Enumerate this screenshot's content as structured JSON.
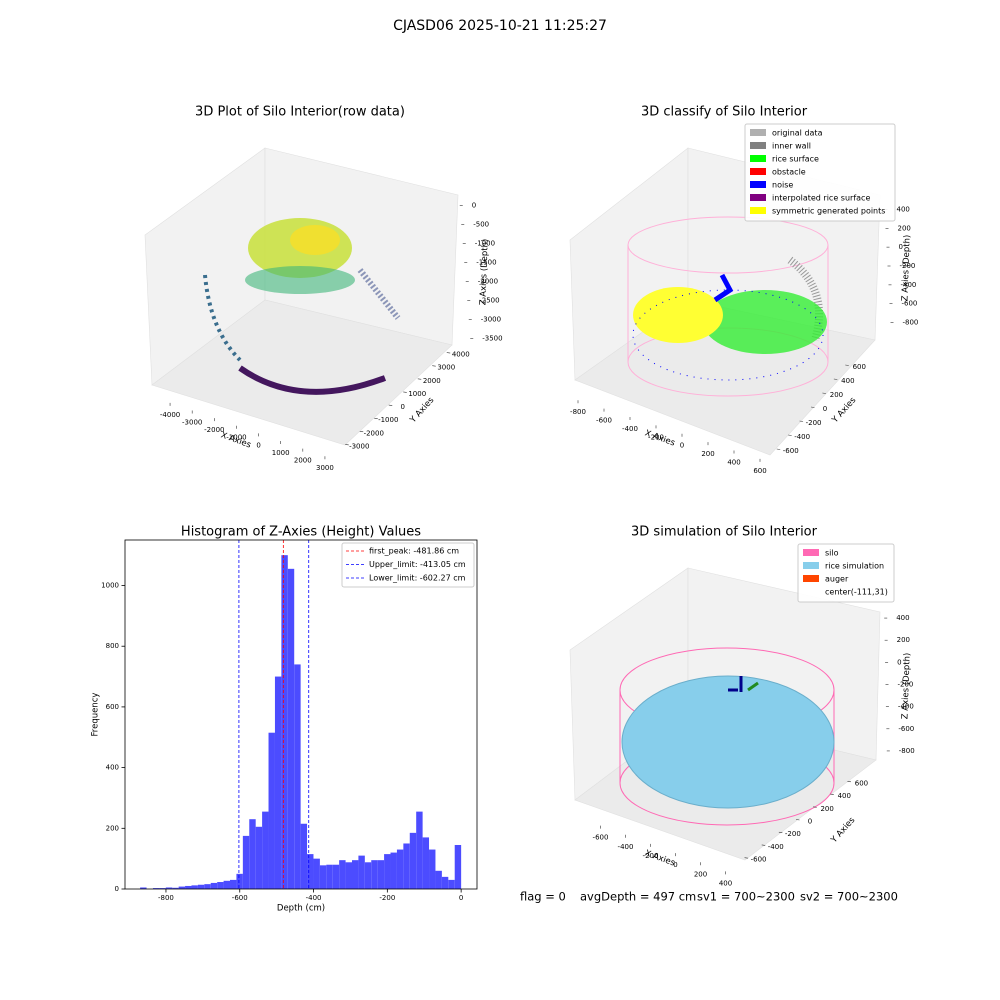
{
  "title": "CJASD06 2025-10-21 11:25:27",
  "chart_data": [
    {
      "type": "scatter3d",
      "title": "3D Plot of Silo Interior(row data)",
      "xlabel": "X Axies",
      "ylabel": "Y Axies",
      "zlabel": "Z Axies (Depth)",
      "xlim": [
        -4500,
        3500
      ],
      "xticks": [
        -4000,
        -3000,
        -2000,
        -1000,
        0,
        1000,
        2000,
        3000
      ],
      "ylim": [
        -3500,
        4500
      ],
      "yticks": [
        -3000,
        -2000,
        -1000,
        0,
        1000,
        2000,
        3000,
        4000
      ],
      "zlim": [
        -3750,
        250
      ],
      "zticks": [
        0,
        -500,
        -1000,
        -1500,
        -2000,
        -2500,
        -3000,
        -3500
      ]
    },
    {
      "type": "scatter3d",
      "title": "3D classify of Silo Interior",
      "xlabel": "X Axies",
      "ylabel": "Y Axies",
      "zlabel": "Z Axies (Depth)",
      "xlim": [
        -900,
        700
      ],
      "xticks": [
        -800,
        -600,
        -400,
        -200,
        0,
        200,
        400,
        600
      ],
      "ylim": [
        -700,
        700
      ],
      "yticks": [
        -600,
        -400,
        -200,
        0,
        200,
        400,
        600
      ],
      "zlim": [
        -900,
        500
      ],
      "zticks": [
        400,
        200,
        0,
        -200,
        -400,
        -600,
        -800
      ],
      "legend": [
        {
          "name": "original data",
          "color": "#b0b0b0"
        },
        {
          "name": "inner wall",
          "color": "#808080"
        },
        {
          "name": "rice surface",
          "color": "#00ff00"
        },
        {
          "name": "obstacle",
          "color": "#ff0000"
        },
        {
          "name": "noise",
          "color": "#0000ff"
        },
        {
          "name": "interpolated rice surface",
          "color": "#800080"
        },
        {
          "name": "symmetric generated points",
          "color": "#ffff00"
        }
      ]
    },
    {
      "type": "histogram",
      "title": "Histogram of Z-Axies (Height) Values",
      "xlabel": "Depth (cm)",
      "ylabel": "Frequency",
      "color": "#4c4cff",
      "bins": [
        -870,
        -852.6,
        -835.2,
        -817.8,
        -800.4,
        -783,
        -765.6,
        -748.2,
        -730.8,
        -713.4,
        -696,
        -678.6,
        -661.2,
        -643.8,
        -626.4,
        -609,
        -591.6,
        -574.2,
        -556.8,
        -539.4,
        -522,
        -504.6,
        -487.2,
        -469.8,
        -452.4,
        -435,
        -417.6,
        -400.2,
        -382.8,
        -365.4,
        -348,
        -330.6,
        -313.2,
        -295.8,
        -278.4,
        -261,
        -243.6,
        -226.2,
        -208.8,
        -191.4,
        -174,
        -156.6,
        -139.2,
        -121.8,
        -104.4,
        -87,
        -69.6,
        -52.2,
        -34.8,
        -17.4,
        0
      ],
      "values": [
        5,
        0,
        3,
        3,
        5,
        4,
        8,
        10,
        12,
        14,
        16,
        20,
        23,
        27,
        30,
        50,
        175,
        230,
        205,
        255,
        515,
        700,
        1100,
        1055,
        740,
        215,
        115,
        100,
        78,
        80,
        80,
        95,
        88,
        95,
        110,
        88,
        95,
        95,
        115,
        120,
        130,
        150,
        185,
        255,
        170,
        130,
        60,
        40,
        30,
        145
      ],
      "lines": [
        {
          "name": "first_peak: -481.86 cm",
          "value": -481.86,
          "color": "#ff0000"
        },
        {
          "name": "Upper_limit: -413.05 cm",
          "value": -413.05,
          "color": "#0000ff"
        },
        {
          "name": "Lower_limit: -602.27 cm",
          "value": -602.27,
          "color": "#0000ff"
        }
      ],
      "xlim": [
        -911,
        43
      ],
      "xticks": [
        -800,
        -600,
        -400,
        -200,
        0
      ],
      "ylim": [
        0,
        1150
      ],
      "yticks": [
        0,
        200,
        400,
        600,
        800,
        1000
      ]
    },
    {
      "type": "surface3d",
      "title": "3D simulation of Silo Interior",
      "xlabel": "X Axies",
      "ylabel": "Y Axies",
      "zlabel": "Z Axies (Depth)",
      "xlim": [
        -700,
        500
      ],
      "xticks": [
        -600,
        -400,
        -200,
        0,
        200,
        400
      ],
      "ylim": [
        -700,
        700
      ],
      "yticks": [
        -600,
        -400,
        -200,
        0,
        200,
        400,
        600
      ],
      "zlim": [
        -900,
        500
      ],
      "zticks": [
        400,
        200,
        0,
        -200,
        -400,
        -600,
        -800
      ],
      "legend": [
        {
          "name": "silo",
          "color": "#ff69b4"
        },
        {
          "name": "rice simulation",
          "color": "#87ceeb"
        },
        {
          "name": "auger",
          "color": "#ff4500"
        },
        {
          "name": "center(-111,31)"
        }
      ]
    }
  ],
  "footer": [
    "flag = 0",
    "avgDepth = 497 cm",
    "sv1 = 700~2300",
    "sv2 = 700~2300"
  ]
}
